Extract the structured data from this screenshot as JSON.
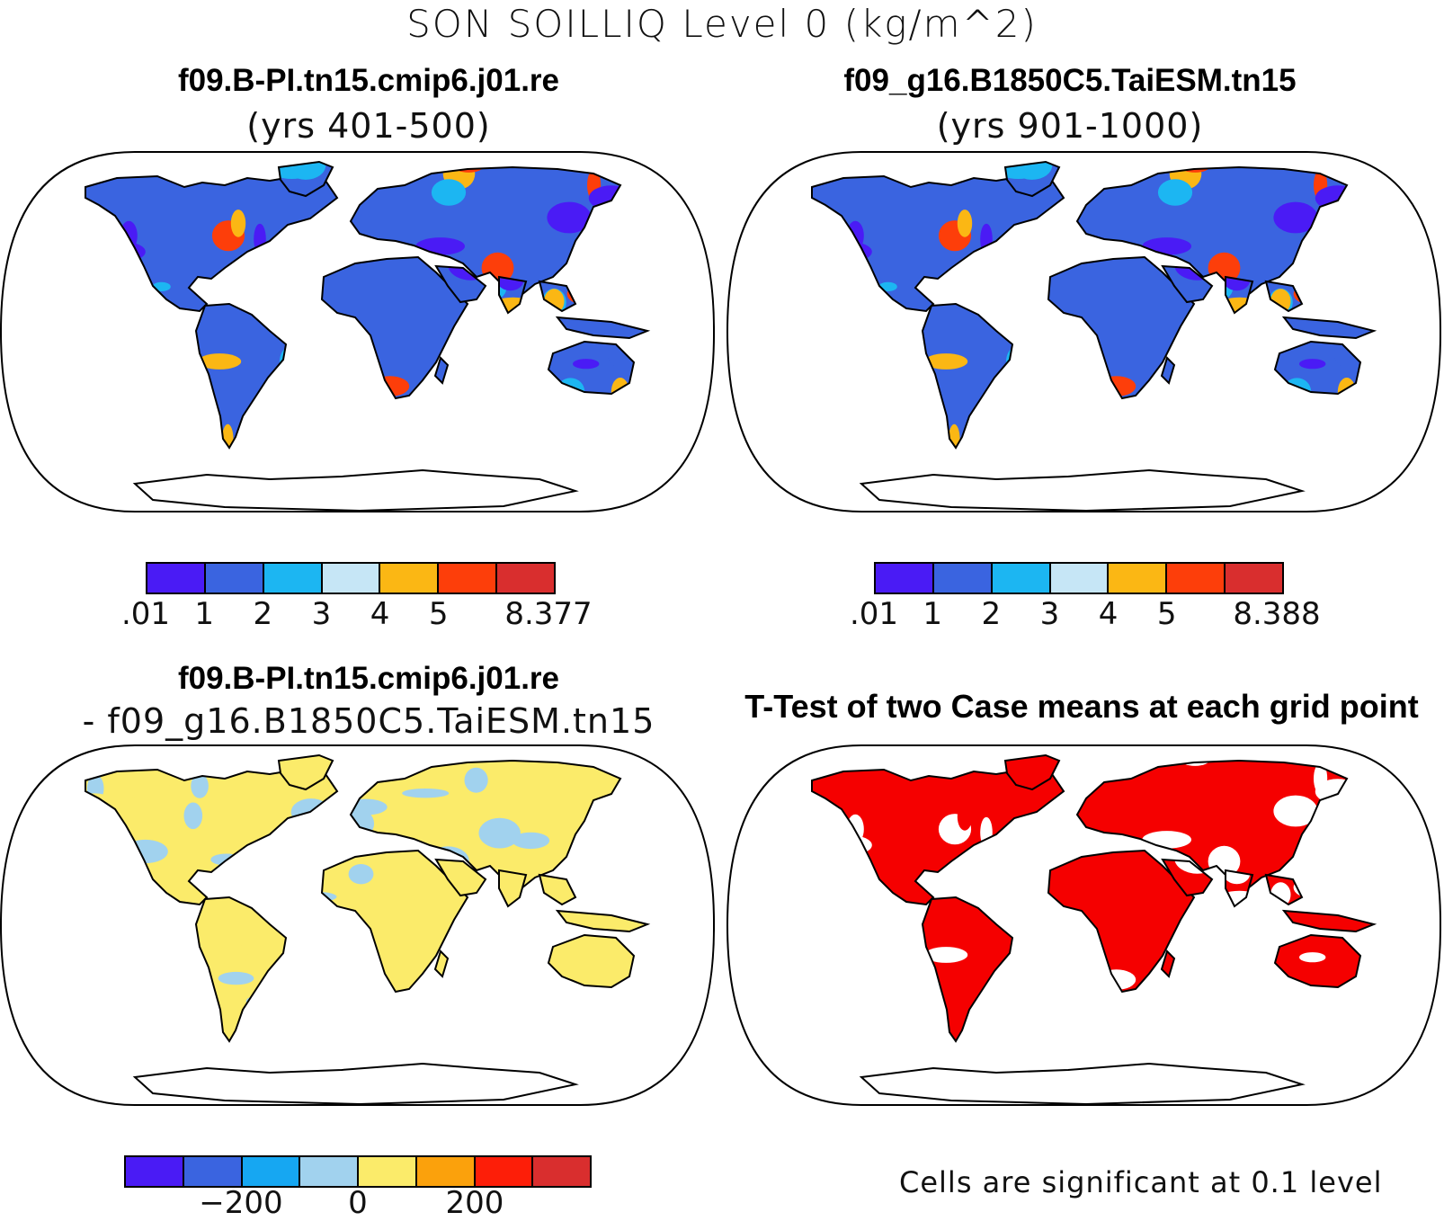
{
  "figure": {
    "title": "SON SOILLIQ Level 0 (kg/m^2)"
  },
  "panels": [
    {
      "id": "case1",
      "title": "f09.B-PI.tn15.cmip6.j01.re",
      "subtitle": "(yrs 401-500)",
      "colorbar": {
        "colors": [
          "#4a1bf5",
          "#3a64e0",
          "#1cb6f2",
          "#c6e6f6",
          "#fbb714",
          "#fd3e0a",
          "#d92e2e"
        ],
        "labels": [
          ".01",
          "1",
          "2",
          "3",
          "4",
          "5",
          "8.377"
        ]
      }
    },
    {
      "id": "case2",
      "title": "f09_g16.B1850C5.TaiESM.tn15",
      "subtitle": "(yrs 901-1000)",
      "colorbar": {
        "colors": [
          "#4a1bf5",
          "#3a64e0",
          "#1cb6f2",
          "#c6e6f6",
          "#fbb714",
          "#fd3e0a",
          "#d92e2e"
        ],
        "labels": [
          ".01",
          "1",
          "2",
          "3",
          "4",
          "5",
          "8.388"
        ]
      }
    },
    {
      "id": "difference",
      "title": "f09.B-PI.tn15.cmip6.j01.re",
      "subtitle": "- f09_g16.B1850C5.TaiESM.tn15",
      "colorbar": {
        "colors": [
          "#4a1bf5",
          "#3a64e0",
          "#16a7f2",
          "#a1d2ee",
          "#fbeb6a",
          "#fba10c",
          "#fd1e08",
          "#d92e2e"
        ],
        "labels": [
          "-200",
          "0",
          "200"
        ]
      }
    },
    {
      "id": "ttest",
      "title": "T-Test of two Case means at each grid point",
      "note": "Cells are significant at 0.1 level",
      "significant_color": "#f50000"
    }
  ],
  "land_fill": {
    "case1": [
      "#3a64e0",
      "#1cb6f2",
      "#fbb714",
      "#fd3e0a",
      "#4a1bf5"
    ],
    "case2": [
      "#3a64e0",
      "#1cb6f2",
      "#fbb714",
      "#fd3e0a",
      "#4a1bf5"
    ],
    "difference": [
      "#fbeb6a",
      "#a1d2ee"
    ],
    "ttest": [
      "#f50000",
      "#ffffff"
    ]
  }
}
